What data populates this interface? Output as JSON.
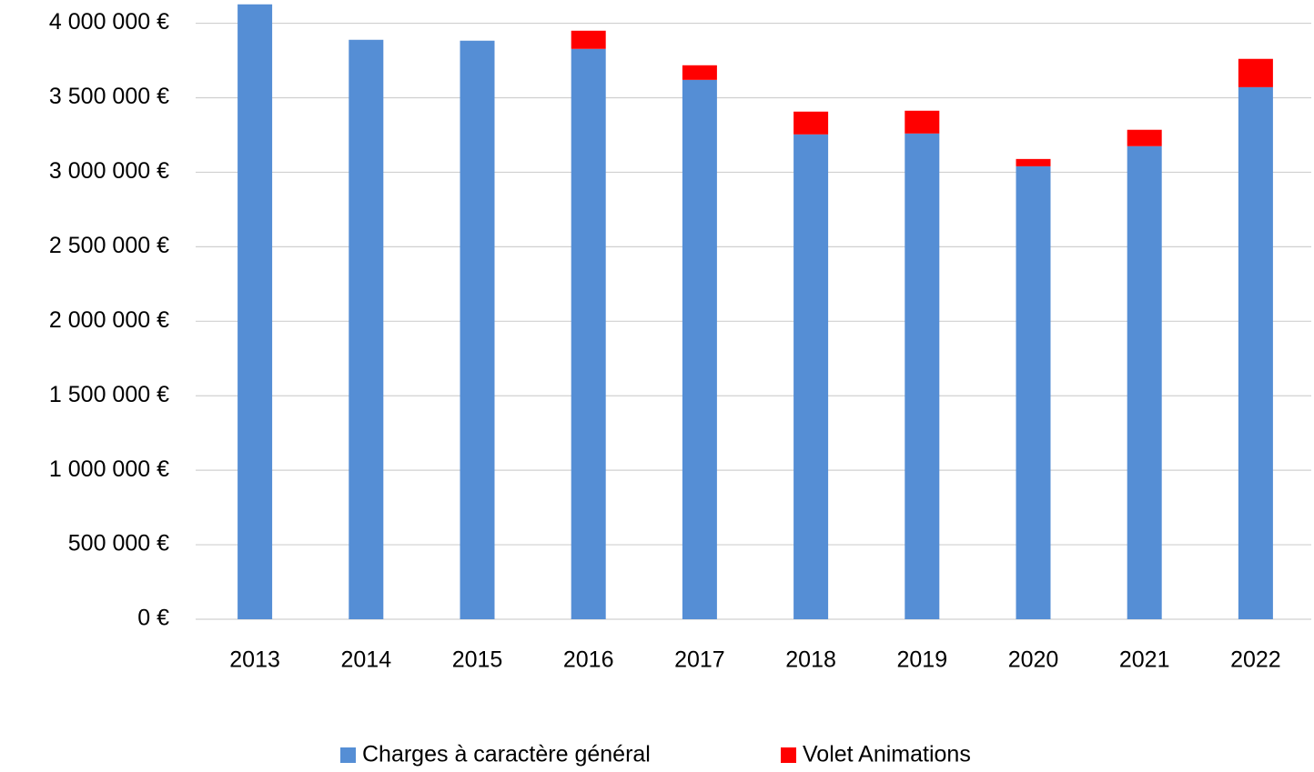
{
  "chart_data": {
    "type": "bar",
    "stacked": true,
    "categories": [
      "2013",
      "2014",
      "2015",
      "2016",
      "2017",
      "2018",
      "2019",
      "2020",
      "2021",
      "2022"
    ],
    "series": [
      {
        "name": "Charges à caractère général",
        "color": "#558ed5",
        "values": [
          4127000,
          3889000,
          3883000,
          3828000,
          3620000,
          3254000,
          3260000,
          3040000,
          3175000,
          3571000
        ]
      },
      {
        "name": "Volet Animations",
        "color": "#ff0000",
        "values": [
          0,
          0,
          0,
          122000,
          98000,
          153000,
          153000,
          49000,
          110000,
          190000
        ]
      }
    ],
    "ylim": [
      0,
      4150000
    ],
    "yticks": [
      {
        "value": 0,
        "label": "0 €"
      },
      {
        "value": 500000,
        "label": "500 000 €"
      },
      {
        "value": 1000000,
        "label": "1 000 000 €"
      },
      {
        "value": 1500000,
        "label": "1 500 000 €"
      },
      {
        "value": 2000000,
        "label": "2 000 000 €"
      },
      {
        "value": 2500000,
        "label": "2 500 000 €"
      },
      {
        "value": 3000000,
        "label": "3 000 000 €"
      },
      {
        "value": 3500000,
        "label": "3 500 000 €"
      },
      {
        "value": 4000000,
        "label": "4 000 000 €"
      }
    ],
    "grid": true,
    "legend": "bottom"
  }
}
